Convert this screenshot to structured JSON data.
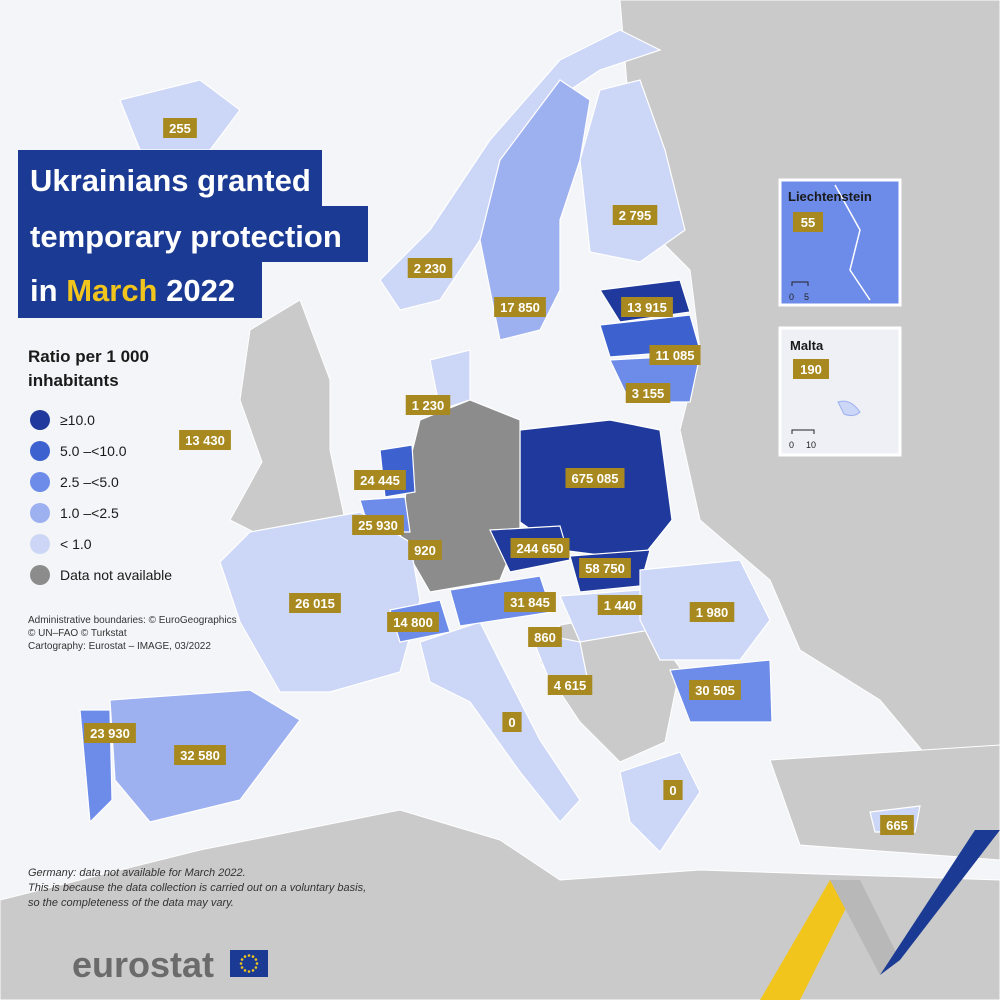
{
  "title": {
    "line1": "Ukrainians granted",
    "line2": "temporary protection",
    "line3": [
      "in",
      "March",
      "2022"
    ]
  },
  "legend": {
    "title": [
      "Ratio per 1 000",
      "inhabitants"
    ],
    "items": [
      {
        "label": "≥10.0",
        "color": "#1f3a9c"
      },
      {
        "label": "5.0 –<10.0",
        "color": "#3d62d0"
      },
      {
        "label": "2.5 –<5.0",
        "color": "#6d8ce9"
      },
      {
        "label": "1.0 –<2.5",
        "color": "#9db0ef"
      },
      {
        "label": "< 1.0",
        "color": "#ccd6f6"
      },
      {
        "label": "Data not available",
        "color": "#8c8c8c"
      }
    ]
  },
  "labels": [
    "255",
    "2 795",
    "2 230",
    "17 850",
    "13 915",
    "11 085",
    "3 155",
    "1 230",
    "13 430",
    "675 085",
    "24 445",
    "25 930",
    "920",
    "244 650",
    "58 750",
    "26 015",
    "31 845",
    "1 440",
    "1 980",
    "14 800",
    "860",
    "4 615",
    "30 505",
    "0",
    "23 930",
    "32 580",
    "0",
    "665"
  ],
  "insets": [
    {
      "name": "Liechtenstein",
      "value": "55",
      "scale": [
        "0",
        "5"
      ]
    },
    {
      "name": "Malta",
      "value": "190",
      "scale": [
        "0",
        "10"
      ]
    }
  ],
  "credits": [
    "Administrative boundaries: © EuroGeographics",
    "© UN–FAO © Turkstat",
    "Cartography: Eurostat – IMAGE, 03/2022"
  ],
  "footnote": [
    "Germany: data not available for March 2022.",
    "This is because the data collection is carried out on a voluntary basis,",
    "so the completeness of the data may vary."
  ],
  "logo": "eurostat"
}
